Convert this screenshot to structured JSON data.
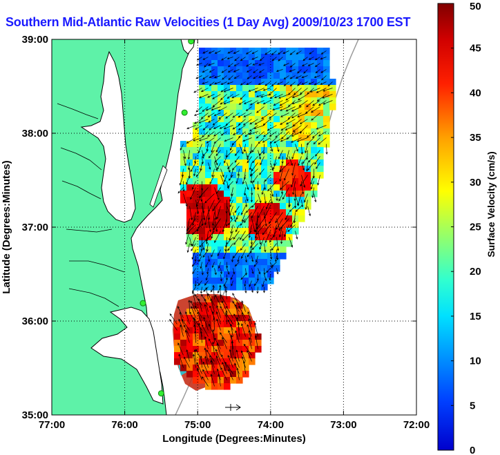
{
  "title": "Southern Mid-Atlantic Raw Velocities (1 Day Avg) 2009/10/23 1700 EST",
  "map": {
    "xlabel": "Longitude (Degrees:Minutes)",
    "ylabel": "Latitude (Degrees:Minutes)",
    "lon_range": [
      -77,
      -72
    ],
    "lat_range": [
      35,
      39
    ],
    "xticks": [
      {
        "lon": -77,
        "label": "77:00"
      },
      {
        "lon": -76,
        "label": "76:00"
      },
      {
        "lon": -75,
        "label": "75:00"
      },
      {
        "lon": -74,
        "label": "74:00"
      },
      {
        "lon": -73,
        "label": "73:00"
      },
      {
        "lon": -72,
        "label": "72:00"
      }
    ],
    "yticks": [
      {
        "lat": 39,
        "label": "39:00"
      },
      {
        "lat": 38,
        "label": "38:00"
      },
      {
        "lat": 37,
        "label": "37:00"
      },
      {
        "lat": 36,
        "label": "36:00"
      },
      {
        "lat": 35,
        "label": "35:00"
      }
    ],
    "grid": true,
    "colors": {
      "land": "#5ef2a8",
      "water": "#ffffff",
      "coast": "#000000",
      "bathymetry": "#9a9a9a",
      "station": "#33ee33",
      "title": "#1a1aff"
    }
  },
  "stations": [
    {
      "lon": -75.09,
      "lat": 38.98
    },
    {
      "lon": -75.18,
      "lat": 38.22
    },
    {
      "lon": -75.75,
      "lat": 36.19
    },
    {
      "lon": -75.5,
      "lat": 35.23
    }
  ],
  "colorbar": {
    "label": "Surface Velocity (cm/s)",
    "min": 0,
    "max": 50,
    "ticks": [
      {
        "value": 0,
        "label": "0"
      },
      {
        "value": 5,
        "label": "5"
      },
      {
        "value": 10,
        "label": "10"
      },
      {
        "value": 15,
        "label": "15"
      },
      {
        "value": 20,
        "label": "20"
      },
      {
        "value": 25,
        "label": "25"
      },
      {
        "value": 30,
        "label": "30"
      },
      {
        "value": 35,
        "label": "35"
      },
      {
        "value": 40,
        "label": "40"
      },
      {
        "value": 45,
        "label": "45"
      },
      {
        "value": 50,
        "label": "50"
      }
    ],
    "colormap": "jet"
  }
}
